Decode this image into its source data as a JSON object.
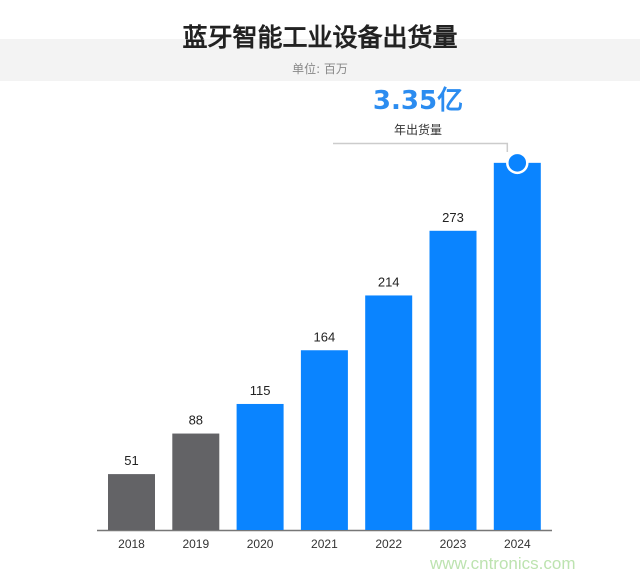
{
  "chart_data": {
    "type": "bar",
    "title": "蓝牙智能工业设备出货量",
    "subtitle": "单位: 百万",
    "categories": [
      "2018",
      "2019",
      "2020",
      "2021",
      "2022",
      "2023",
      "2024"
    ],
    "values": [
      51,
      88,
      115,
      164,
      214,
      273,
      335
    ],
    "value_labels": [
      "51",
      "88",
      "115",
      "164",
      "214",
      "273",
      ""
    ],
    "bar_colors": [
      "#636366",
      "#636366",
      "#0a84ff",
      "#0a84ff",
      "#0a84ff",
      "#0a84ff",
      "#0a84ff"
    ],
    "ylim": [
      0,
      350
    ],
    "grid": false,
    "annotation": {
      "value": "3.35亿",
      "label": "年出货量",
      "category": "2024"
    }
  },
  "watermark": "www.cntronics.com"
}
